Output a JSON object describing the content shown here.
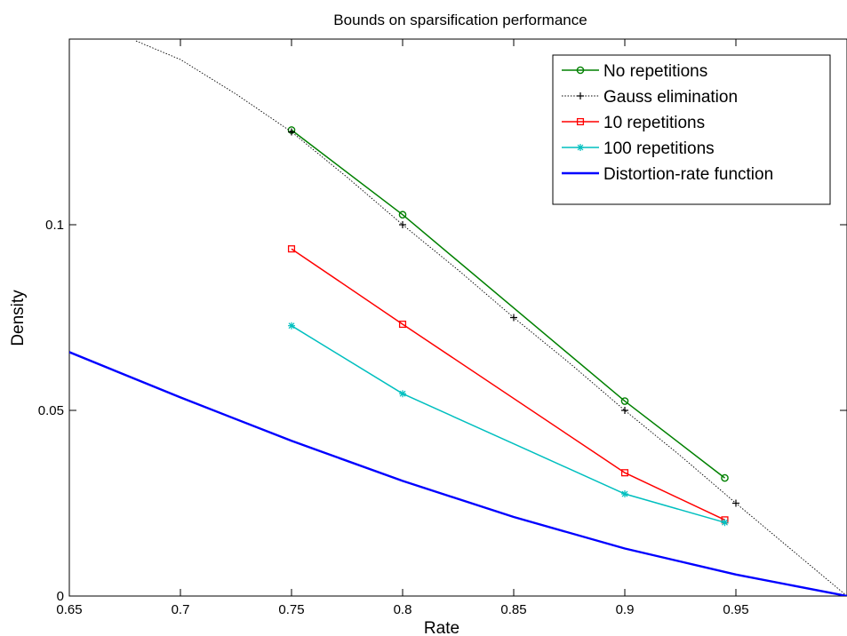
{
  "chart_data": {
    "type": "line",
    "title": "Bounds on sparsification performance",
    "xlabel": "Rate",
    "ylabel": "Density",
    "xlim": [
      0.65,
      1.0
    ],
    "ylim": [
      0,
      0.15
    ],
    "xticks": [
      0.65,
      0.7,
      0.75,
      0.8,
      0.85,
      0.9,
      0.95
    ],
    "xtick_labels": [
      "0.65",
      "0.7",
      "0.75",
      "0.8",
      "0.85",
      "0.9",
      "0.95"
    ],
    "yticks": [
      0,
      0.05,
      0.1
    ],
    "ytick_labels": [
      "0",
      "0.05",
      "0.1"
    ],
    "grid": false,
    "legend_position": "top-right",
    "series": [
      {
        "name": "No repetitions",
        "color": "#008000",
        "marker": "circle",
        "dash": "solid",
        "x": [
          0.75,
          0.8,
          0.9,
          0.945
        ],
        "y": [
          0.1255,
          0.1027,
          0.0525,
          0.0318
        ]
      },
      {
        "name": "Gauss elimination",
        "color": "#000000",
        "marker": "plus",
        "dash": "dotted",
        "markers_at": [
          0.75,
          0.8,
          0.85,
          0.9,
          0.95
        ],
        "x": [
          0.68,
          0.7,
          0.725,
          0.75,
          0.775,
          0.8,
          0.825,
          0.85,
          0.875,
          0.9,
          0.925,
          0.95,
          0.975,
          1.0
        ],
        "y": [
          0.1495,
          0.1445,
          0.1352,
          0.125,
          0.1128,
          0.1,
          0.0878,
          0.075,
          0.0628,
          0.05,
          0.0378,
          0.025,
          0.0125,
          0.0
        ]
      },
      {
        "name": "10 repetitions",
        "color": "#ff0000",
        "marker": "square",
        "dash": "solid",
        "x": [
          0.75,
          0.8,
          0.9,
          0.945
        ],
        "y": [
          0.0935,
          0.0732,
          0.0332,
          0.0205
        ]
      },
      {
        "name": "100 repetitions",
        "color": "#00bfbf",
        "marker": "star",
        "dash": "solid",
        "x": [
          0.75,
          0.8,
          0.9,
          0.945
        ],
        "y": [
          0.0728,
          0.0545,
          0.0275,
          0.0198
        ]
      },
      {
        "name": "Distortion-rate function",
        "color": "#0000ff",
        "marker": "none",
        "dash": "solid",
        "x": [
          0.65,
          0.7,
          0.75,
          0.8,
          0.85,
          0.9,
          0.95,
          1.0
        ],
        "y": [
          0.0657,
          0.0535,
          0.0418,
          0.031,
          0.0213,
          0.0128,
          0.0058,
          0.0
        ]
      }
    ]
  }
}
